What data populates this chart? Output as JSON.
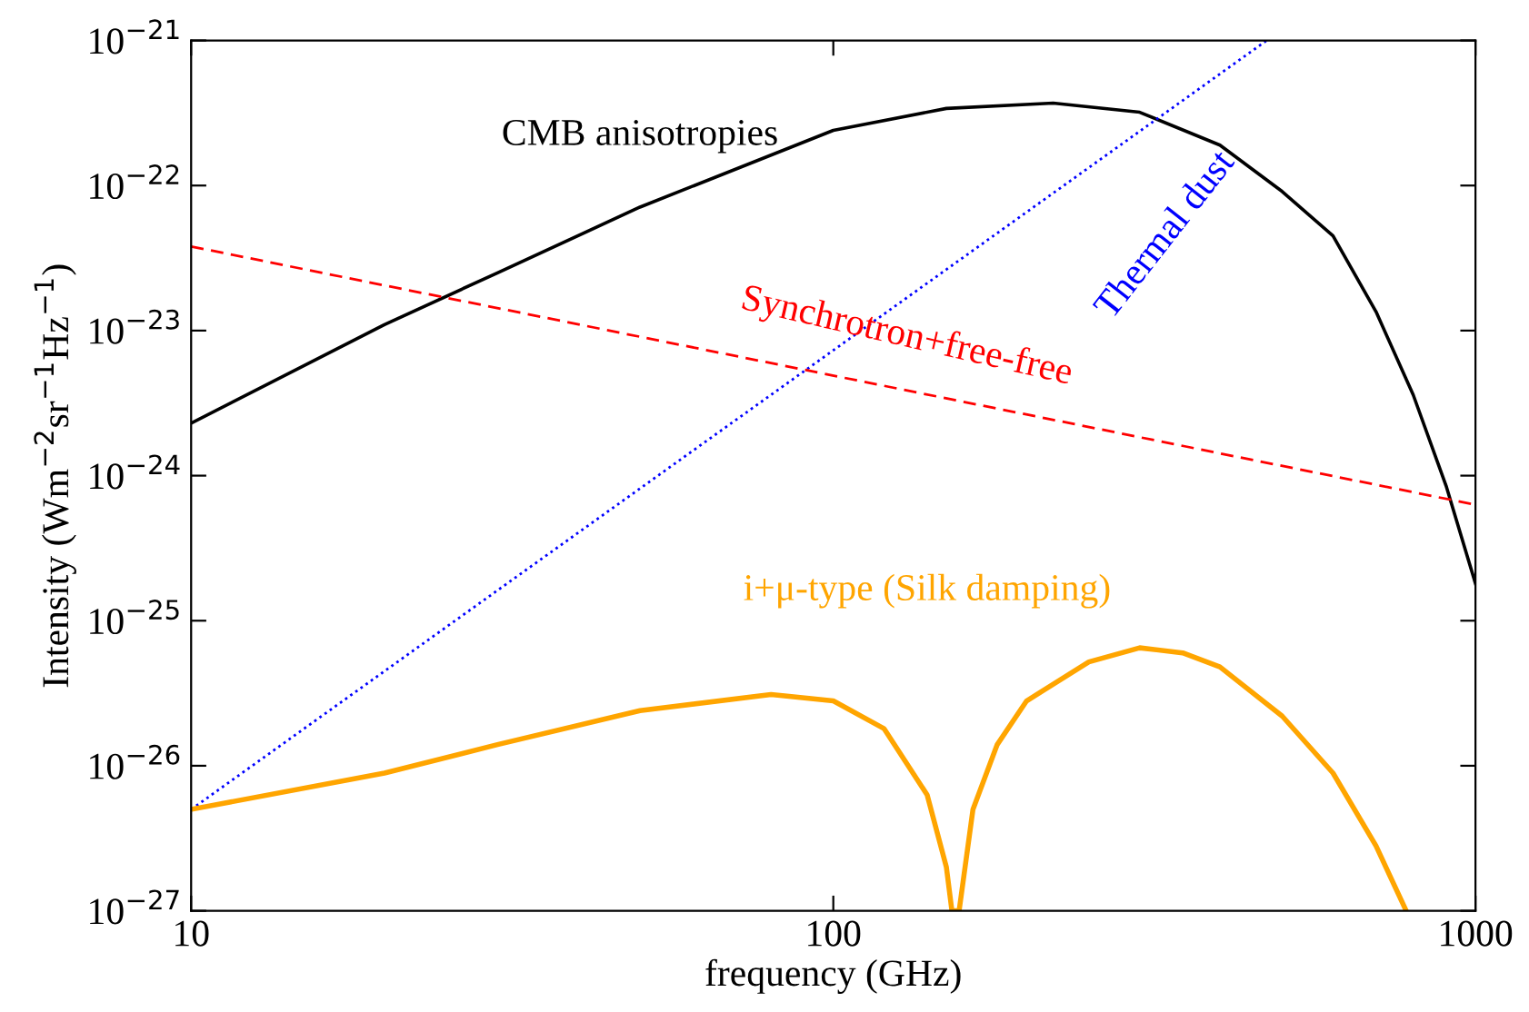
{
  "chart_data": {
    "type": "line",
    "xlabel": "frequency (GHz)",
    "ylabel": "Intensity (Wm$^{−2}$sr$^{−1}$Hz$^{−1}$)",
    "log": "xy",
    "grid": false,
    "legend": false,
    "xlim": [
      10,
      1000
    ],
    "xticks": [
      10,
      100,
      1000
    ],
    "ylim": [
      1e-27,
      1e-21
    ],
    "yticks": [
      {
        "value": 1e-27,
        "label": "10$^{−27}$"
      },
      {
        "value": 1e-26,
        "label": "10$^{−26}$"
      },
      {
        "value": 1e-25,
        "label": "10$^{−25}$"
      },
      {
        "value": 1e-24,
        "label": "10$^{−24}$"
      },
      {
        "value": 1e-23,
        "label": "10$^{−23}$"
      },
      {
        "value": 1e-22,
        "label": "10$^{−22}$"
      },
      {
        "value": 1e-21,
        "label": "10$^{−21}$"
      }
    ],
    "series": [
      {
        "name": "CMB anisotropies",
        "color": "#000000",
        "line_style": "solid",
        "x": [
          10,
          20,
          30,
          50,
          100,
          150,
          220,
          300,
          400,
          500,
          600,
          700,
          800,
          900,
          1000
        ],
        "values": [
          2.3e-24,
          1.1e-23,
          2.5e-23,
          7.1e-23,
          2.4e-22,
          3.4e-22,
          3.7e-22,
          3.2e-22,
          1.9e-22,
          9.1e-23,
          4.5e-23,
          1.35e-23,
          3.6e-24,
          8.5e-25,
          1.8e-25
        ]
      },
      {
        "name": "Thermal dust",
        "color": "#0000ff",
        "line_style": "dotted",
        "x": [
          10,
          473
        ],
        "values": [
          5e-27,
          1e-21
        ]
      },
      {
        "name": "Synchrotron+free-free",
        "color": "#ff0000",
        "line_style": "dashed",
        "x": [
          10,
          1000
        ],
        "values": [
          3.8e-23,
          6.3e-25
        ]
      },
      {
        "name": "i+μ-type (Silk damping)",
        "color": "#ffa500",
        "line_style": "solid",
        "x": [
          10,
          20,
          30,
          50,
          80,
          100,
          120,
          140,
          150,
          153,
          157,
          165,
          180,
          200,
          250,
          300,
          350,
          400,
          500,
          600,
          700,
          780
        ],
        "values": [
          5e-27,
          8.9e-27,
          1.4e-26,
          2.4e-26,
          3.1e-26,
          2.8e-26,
          1.8e-26,
          6.3e-27,
          2e-27,
          1e-27,
          1e-27,
          5e-27,
          1.4e-26,
          2.8e-26,
          5.2e-26,
          6.5e-26,
          6e-26,
          4.8e-26,
          2.2e-26,
          8.9e-27,
          2.8e-27,
          1e-27
        ]
      }
    ]
  }
}
